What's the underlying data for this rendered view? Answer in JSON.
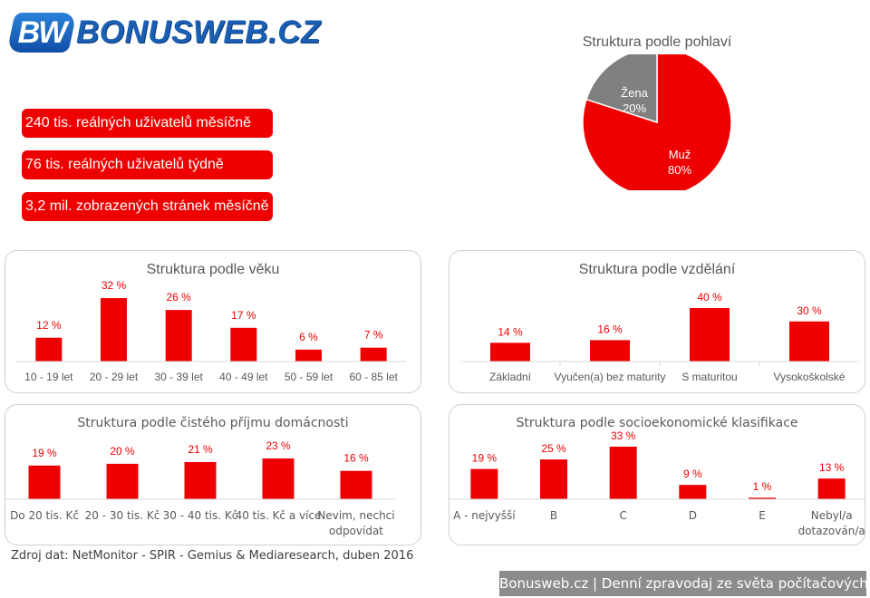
{
  "logo": {
    "mark": "BW",
    "text": "BONUSWEB.CZ"
  },
  "stats": [
    "240 tis. reálných uživatelů měsíčně",
    "76 tis. reálných uživatelů týdně",
    "3,2 mil. zobrazených stránek měsíčně"
  ],
  "colors": {
    "accent": "#ee0000",
    "female": "#808080",
    "footer_bg": "#8c8c8c"
  },
  "source": "Zdroj dat: NetMonitor - SPIR - Gemius & Mediaresearch, duben 2016",
  "footer": "Bonusweb.cz | Denní zpravodaj ze světa počítačových her",
  "chart_data": [
    {
      "id": "gender",
      "type": "pie",
      "title": "Struktura podle pohlaví",
      "categories": [
        "Muž",
        "Žena"
      ],
      "values": [
        80,
        20
      ],
      "labels": [
        "80%",
        "20%"
      ],
      "colors": [
        "#ee0000",
        "#808080"
      ]
    },
    {
      "id": "age",
      "type": "bar",
      "title": "Struktura podle věku",
      "categories": [
        "10 - 19 let",
        "20 - 29 let",
        "30 - 39 let",
        "40 - 49 let",
        "50 - 59 let",
        "60 - 85 let"
      ],
      "values": [
        12,
        32,
        26,
        17,
        6,
        7
      ],
      "labels": [
        "12 %",
        "32 %",
        "26 %",
        "17 %",
        "6 %",
        "7 %"
      ],
      "ylim": [
        0,
        32
      ]
    },
    {
      "id": "education",
      "type": "bar",
      "title": "Struktura podle vzdělání",
      "categories": [
        "Základní",
        "Vyučen(a) bez maturity",
        "S maturitou",
        "Vysokoškolské"
      ],
      "values": [
        14,
        16,
        40,
        30
      ],
      "labels": [
        "14 %",
        "16 %",
        "40 %",
        "30 %"
      ],
      "ylim": [
        0,
        40
      ]
    },
    {
      "id": "income",
      "type": "bar",
      "title": "Struktura podle čistého příjmu domácnosti",
      "categories": [
        "Do 20 tis. Kč",
        "20 - 30 tis. Kč",
        "30 - 40 tis. Kč",
        "40 tis. Kč a více",
        [
          "Nevim, nechci",
          "odpovídat"
        ]
      ],
      "values": [
        19,
        20,
        21,
        23,
        16
      ],
      "labels": [
        "19 %",
        "20 %",
        "21 %",
        "23 %",
        "16 %"
      ],
      "ylim": [
        0,
        23
      ]
    },
    {
      "id": "socio",
      "type": "bar",
      "title": "Struktura podle socioekonomické klasifikace",
      "categories": [
        "A - nejvyšší",
        "B",
        "C",
        "D",
        "E",
        [
          "Nebyl/a",
          "dotazován/a"
        ]
      ],
      "values": [
        19,
        25,
        33,
        9,
        1,
        13
      ],
      "labels": [
        "19 %",
        "25 %",
        "33 %",
        "9 %",
        "1 %",
        "13 %"
      ],
      "ylim": [
        0,
        33
      ]
    }
  ]
}
